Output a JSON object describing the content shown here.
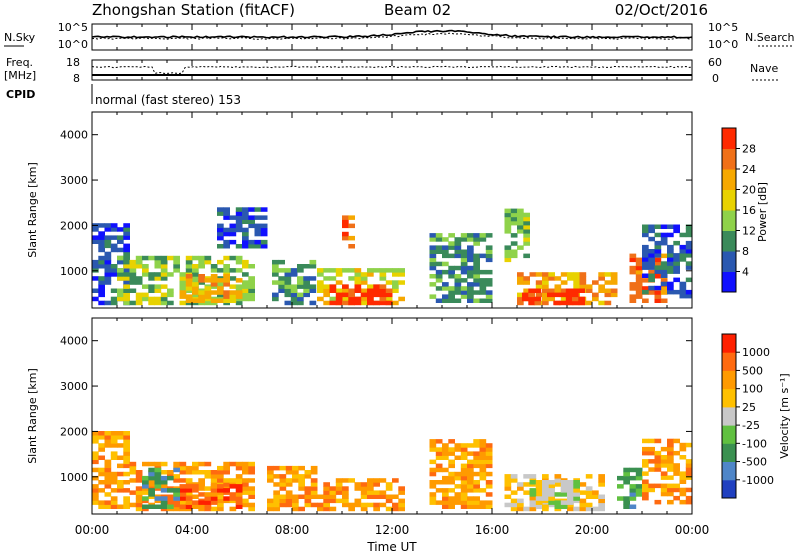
{
  "header": {
    "title": "Zhongshan Station (fitACF)",
    "beam": "Beam 02",
    "date": "02/Oct/2016"
  },
  "noise_panel": {
    "left_label": "N.Sky",
    "left_ticks": [
      "10^5",
      "10^0"
    ],
    "right_label": "N.Search",
    "right_ticks": [
      "10^5",
      "10^0"
    ]
  },
  "freq_panel": {
    "left_label_1": "Freq.",
    "left_label_2": "[MHz]",
    "left_ticks": [
      "18",
      "8"
    ],
    "right_label": "Nave",
    "right_ticks": [
      "60",
      "0"
    ]
  },
  "cpid": {
    "label": "CPID",
    "text": "normal (fast stereo) 153"
  },
  "x_axis": {
    "label": "Time UT",
    "ticks": [
      "00:00",
      "04:00",
      "08:00",
      "12:00",
      "16:00",
      "20:00",
      "00:00"
    ]
  },
  "chart_data": [
    {
      "type": "heatmap",
      "title": "",
      "xlabel": "Time UT",
      "ylabel": "Slant Range [km]",
      "x_range_hours": [
        0,
        24
      ],
      "ylim": [
        180,
        4500
      ],
      "y_ticks": [
        1000,
        2000,
        3000,
        4000
      ],
      "colorbar": {
        "label": "Power [dB]",
        "ticks": [
          "4",
          "8",
          "12",
          "16",
          "20",
          "24",
          "28"
        ],
        "colors": [
          "#1010ff",
          "#2a58b0",
          "#3a8a5a",
          "#8fd24a",
          "#e8d200",
          "#f6a800",
          "#f07018",
          "#ff2a00"
        ]
      },
      "regions": [
        {
          "t0": 0.0,
          "t1": 1.3,
          "r0": 250,
          "r1": 2000,
          "level": 1
        },
        {
          "t0": 1.0,
          "t1": 6.5,
          "r0": 250,
          "r1": 1300,
          "level": 3
        },
        {
          "t0": 3.5,
          "t1": 6.0,
          "r0": 300,
          "r1": 900,
          "level": 5
        },
        {
          "t0": 5.0,
          "t1": 6.8,
          "r0": 1500,
          "r1": 2400,
          "level": 1
        },
        {
          "t0": 7.2,
          "t1": 8.8,
          "r0": 250,
          "r1": 1200,
          "level": 2
        },
        {
          "t0": 9.0,
          "t1": 12.5,
          "r0": 250,
          "r1": 1000,
          "level": 4
        },
        {
          "t0": 9.5,
          "t1": 12.0,
          "r0": 250,
          "r1": 700,
          "level": 7
        },
        {
          "t0": 10.0,
          "t1": 10.5,
          "r0": 1500,
          "r1": 2200,
          "level": 6
        },
        {
          "t0": 13.5,
          "t1": 16.0,
          "r0": 300,
          "r1": 1800,
          "level": 2
        },
        {
          "t0": 17.0,
          "t1": 21.0,
          "r0": 250,
          "r1": 900,
          "level": 5
        },
        {
          "t0": 17.2,
          "t1": 19.5,
          "r0": 250,
          "r1": 600,
          "level": 7
        },
        {
          "t0": 16.5,
          "t1": 17.5,
          "r0": 1200,
          "r1": 2300,
          "level": 3
        },
        {
          "t0": 21.5,
          "t1": 22.8,
          "r0": 300,
          "r1": 1300,
          "level": 6
        },
        {
          "t0": 22.0,
          "t1": 24.0,
          "r0": 400,
          "r1": 2000,
          "level": 1
        }
      ]
    },
    {
      "type": "heatmap",
      "title": "",
      "xlabel": "Time UT",
      "ylabel": "Slant Range [km]",
      "x_range_hours": [
        0,
        24
      ],
      "ylim": [
        180,
        4500
      ],
      "y_ticks": [
        1000,
        2000,
        3000,
        4000
      ],
      "colorbar": {
        "label": "Velocity [m s⁻¹]",
        "ticks": [
          "1000",
          "500",
          "100",
          "25",
          "-25",
          "-100",
          "-500",
          "-1000"
        ],
        "colors": [
          "#2040c0",
          "#4f86c8",
          "#3a9050",
          "#60c040",
          "#c8c8c8",
          "#ffc000",
          "#ff9a00",
          "#ff6a10",
          "#ff2000"
        ]
      },
      "regions": [
        {
          "t0": 0.0,
          "t1": 1.5,
          "r0": 300,
          "r1": 2000,
          "level": 6
        },
        {
          "t0": 1.5,
          "t1": 6.5,
          "r0": 250,
          "r1": 1300,
          "level": 6
        },
        {
          "t0": 3.0,
          "t1": 6.0,
          "r0": 300,
          "r1": 800,
          "level": 7
        },
        {
          "t0": 2.0,
          "t1": 3.5,
          "r0": 300,
          "r1": 1200,
          "level": 2
        },
        {
          "t0": 7.0,
          "t1": 8.8,
          "r0": 250,
          "r1": 1200,
          "level": 6
        },
        {
          "t0": 9.0,
          "t1": 12.5,
          "r0": 250,
          "r1": 900,
          "level": 6
        },
        {
          "t0": 13.5,
          "t1": 16.0,
          "r0": 300,
          "r1": 1800,
          "level": 6
        },
        {
          "t0": 16.5,
          "t1": 20.5,
          "r0": 250,
          "r1": 1000,
          "level": 5
        },
        {
          "t0": 17.5,
          "t1": 19.5,
          "r0": 300,
          "r1": 900,
          "level": 4
        },
        {
          "t0": 21.0,
          "t1": 22.0,
          "r0": 300,
          "r1": 1200,
          "level": 2
        },
        {
          "t0": 22.0,
          "t1": 24.0,
          "r0": 400,
          "r1": 1800,
          "level": 6
        }
      ]
    }
  ]
}
